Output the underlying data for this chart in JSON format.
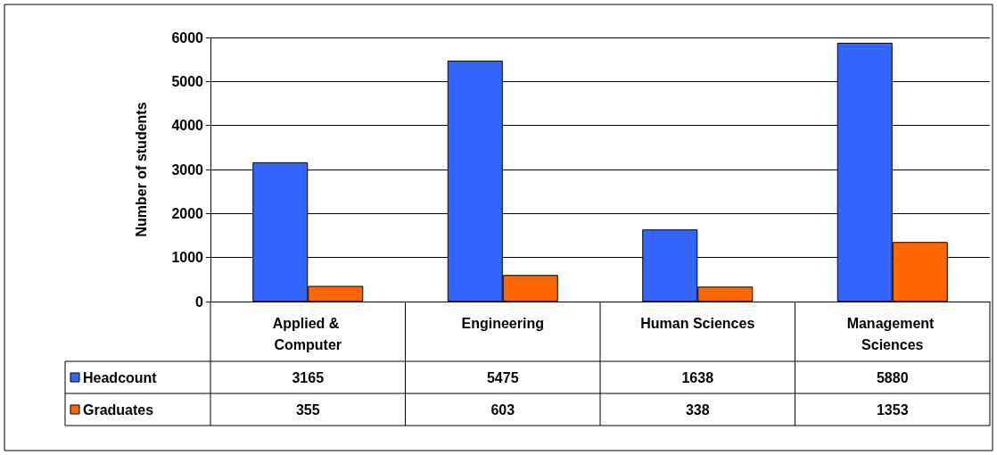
{
  "chart_data": {
    "type": "bar",
    "ylabel": "Number of students",
    "categories": [
      "Applied & Computer",
      "Engineering",
      "Human Sciences",
      "Management Sciences"
    ],
    "series": [
      {
        "name": "Headcount",
        "color": "#3366ff",
        "values": [
          3165,
          5475,
          1638,
          5880
        ]
      },
      {
        "name": "Graduates",
        "color": "#ff6600",
        "values": [
          355,
          603,
          338,
          1353
        ]
      }
    ],
    "ylim": [
      0,
      6000
    ],
    "yticks": [
      0,
      1000,
      2000,
      3000,
      4000,
      5000,
      6000
    ],
    "grid": "y",
    "legend": "bottom left",
    "data_labels": true
  }
}
